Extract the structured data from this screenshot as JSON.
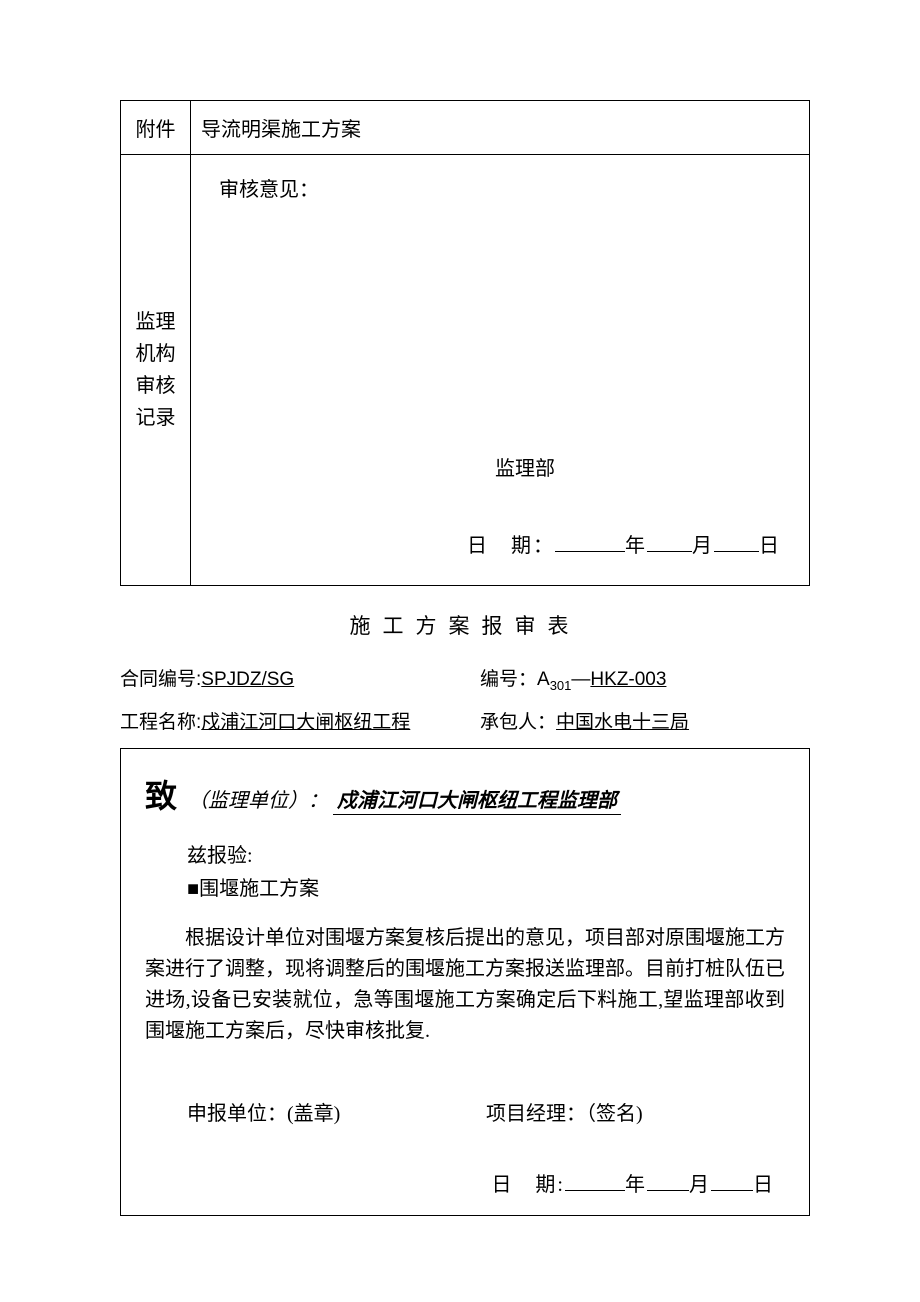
{
  "table1": {
    "attachment_label": "附件",
    "attachment_value": "导流明渠施工方案",
    "review_org_label_l1": "监理",
    "review_org_label_l2": "机构",
    "review_org_label_l3": "审核",
    "review_org_label_l4": "记录",
    "review_opinion_label": "审核意见：",
    "supervision_dept": "监理部",
    "date_label": "日　期：",
    "year": "年",
    "month": "月",
    "day": "日"
  },
  "form_title": "施工方案报审表",
  "header": {
    "contract_no_label": "合同编号:",
    "contract_no_value": "SPJDZ/SG",
    "serial_no_label": "编号：",
    "serial_prefix": "A",
    "serial_sub": "301",
    "serial_dash": "—",
    "serial_suffix": "HKZ-003",
    "project_name_label": "工程名称:",
    "project_name_value": "戍浦江河口大闸枢纽工程",
    "contractor_label": "承包人：",
    "contractor_value": "中国水电十三局"
  },
  "table2": {
    "zhi": "致",
    "supervision_unit_label": "（监理单位）：",
    "supervision_unit_value": " 戍浦江河口大闸枢纽工程监理部 ",
    "zi_bao_yan": "兹报验:",
    "checkbox_item": "■围堰施工方案",
    "body": "根据设计单位对围堰方案复核后提出的意见，项目部对原围堰施工方案进行了调整，现将调整后的围堰施工方案报送监理部。目前打桩队伍已进场,设备已安装就位，急等围堰施工方案确定后下料施工,望监理部收到围堰施工方案后，尽快审核批复.",
    "applicant_label": "申报单位：(盖章)",
    "pm_label": "项目经理：（签名)",
    "date_label": "日　期:",
    "year": "年",
    "month": "月",
    "day": "日"
  }
}
